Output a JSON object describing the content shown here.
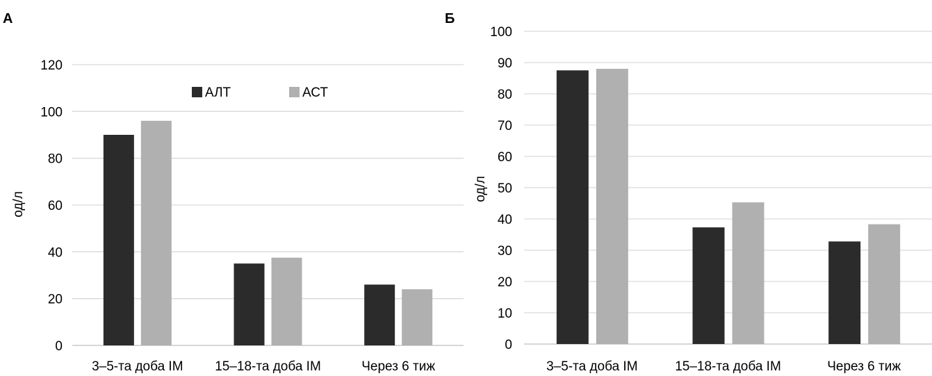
{
  "chart_data": [
    {
      "type": "bar",
      "panel_label": "А",
      "categories": [
        "3–5-та доба ІМ",
        "15–18-та доба ІМ",
        "Через 6 тиж"
      ],
      "series": [
        {
          "name": "АЛТ",
          "color": "#2b2b2b",
          "values": [
            90,
            35,
            26
          ]
        },
        {
          "name": "АСТ",
          "color": "#b0b0b0",
          "values": [
            96,
            37.5,
            24
          ]
        }
      ],
      "ylabel": "од/л",
      "ylim": [
        0,
        120
      ],
      "yticks": [
        0,
        20,
        40,
        60,
        80,
        100,
        120
      ],
      "grid": true,
      "legend": "top-center"
    },
    {
      "type": "bar",
      "panel_label": "Б",
      "categories": [
        "3–5-та доба ІМ",
        "15–18-та доба ІМ",
        "Через 6 тиж"
      ],
      "series": [
        {
          "color": "#2b2b2b",
          "values": [
            87.5,
            37.3,
            32.8
          ]
        },
        {
          "color": "#b0b0b0",
          "values": [
            88,
            45.3,
            38.3
          ]
        }
      ],
      "ylabel": "од/л",
      "ylim": [
        0,
        100
      ],
      "yticks": [
        0,
        10,
        20,
        30,
        40,
        50,
        60,
        70,
        80,
        90,
        100
      ],
      "grid": true
    }
  ]
}
